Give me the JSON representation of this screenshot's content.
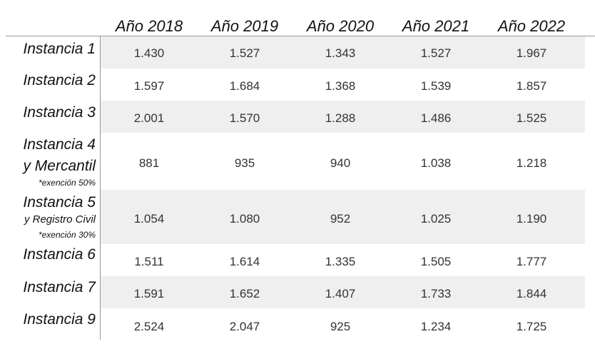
{
  "headers": [
    "Año 2018",
    "Año 2019",
    "Año 2020",
    "Año 2021",
    "Año 2022"
  ],
  "rows": [
    {
      "label": "Instancia 1",
      "values": [
        "1.430",
        "1.527",
        "1.343",
        "1.527",
        "1.967"
      ]
    },
    {
      "label": "Instancia 2",
      "values": [
        "1.597",
        "1.684",
        "1.368",
        "1.539",
        "1.857"
      ]
    },
    {
      "label": "Instancia 3",
      "values": [
        "2.001",
        "1.570",
        "1.288",
        "1.486",
        "1.525"
      ]
    },
    {
      "label": "Instancia 4",
      "sublabel": "y Mercantil",
      "note": "*exención 50%",
      "values": [
        "881",
        "935",
        "940",
        "1.038",
        "1.218"
      ]
    },
    {
      "label": "Instancia 5",
      "sublabel": "y Registro Civil",
      "note": "*exención 30%",
      "values": [
        "1.054",
        "1.080",
        "952",
        "1.025",
        "1.190"
      ]
    },
    {
      "label": "Instancia 6",
      "values": [
        "1.511",
        "1.614",
        "1.335",
        "1.505",
        "1.777"
      ]
    },
    {
      "label": "Instancia 7",
      "values": [
        "1.591",
        "1.652",
        "1.407",
        "1.733",
        "1.844"
      ]
    },
    {
      "label": "Instancia 9",
      "values": [
        "2.524",
        "2.047",
        "925",
        "1.234",
        "1.725"
      ]
    }
  ]
}
